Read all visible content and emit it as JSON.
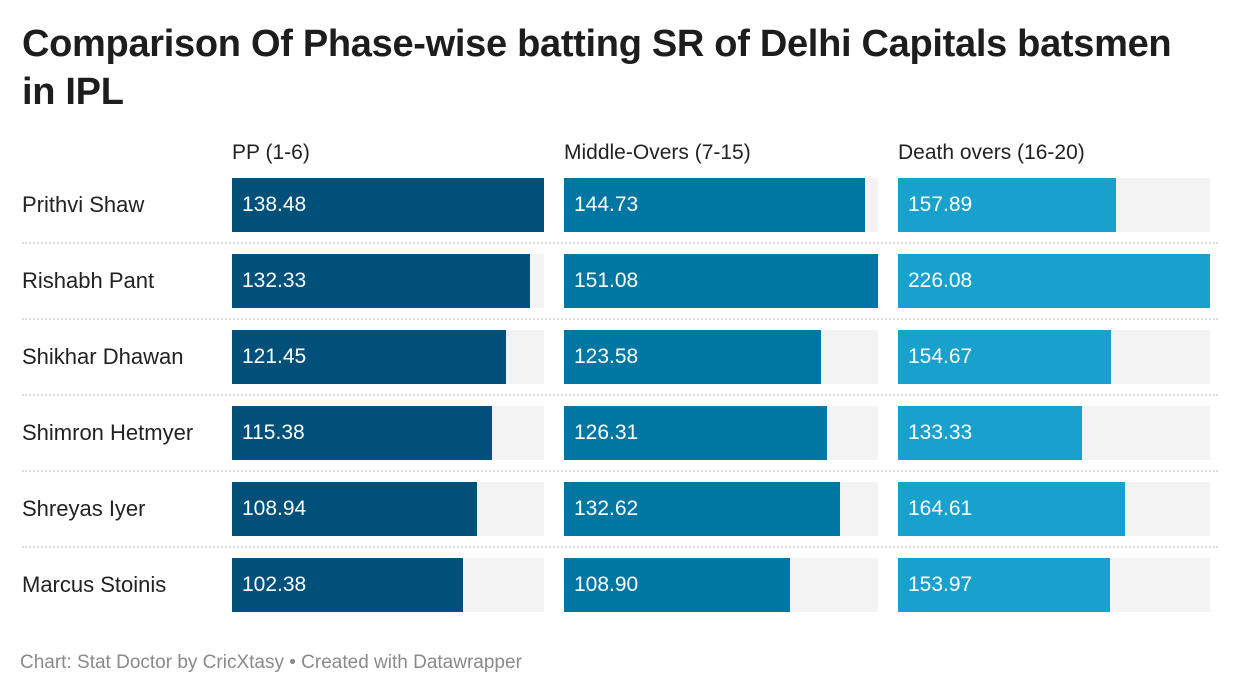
{
  "title": "Comparison Of Phase-wise batting SR of Delhi Capitals batsmen in IPL",
  "footer": "Chart: Stat Doctor by CricXtasy • Created with Datawrapper",
  "chart_data": {
    "type": "bar",
    "orientation": "horizontal",
    "title": "Comparison Of Phase-wise batting SR of Delhi Capitals batsmen in IPL",
    "categories": [
      "Prithvi Shaw",
      "Rishabh Pant",
      "Shikhar Dhawan",
      "Shimron Hetmyer",
      "Shreyas Iyer",
      "Marcus Stoinis"
    ],
    "series": [
      {
        "name": "PP (1-6)",
        "color": "#00507a",
        "values": [
          138.48,
          132.33,
          121.45,
          115.38,
          108.94,
          102.38
        ]
      },
      {
        "name": "Middle-Overs (7-15)",
        "color": "#0077a3",
        "values": [
          144.73,
          151.08,
          123.58,
          126.31,
          132.62,
          108.9
        ]
      },
      {
        "name": "Death overs (16-20)",
        "color": "#18a1cd",
        "values": [
          157.89,
          226.08,
          154.67,
          133.33,
          164.61,
          153.97
        ]
      }
    ],
    "grid": false,
    "track_color": "#f3f3f3"
  }
}
